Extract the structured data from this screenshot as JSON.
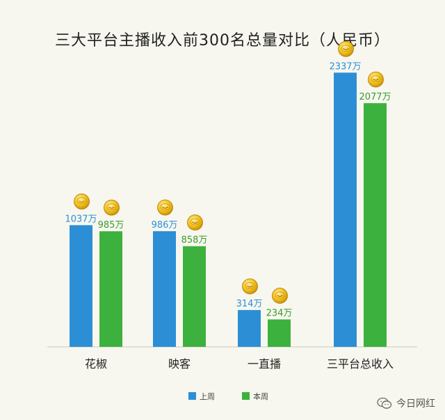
{
  "chart_data": {
    "type": "bar",
    "title": "三大平台主播收入前300名总量对比（人民币）",
    "categories": [
      "花椒",
      "映客",
      "一直播",
      "三平台总收入"
    ],
    "series": [
      {
        "name": "上周",
        "values": [
          1037,
          986,
          314,
          2337
        ],
        "labels": [
          "1037万",
          "986万",
          "314万",
          "2337万"
        ],
        "color": "#2c8fd6",
        "label_color": "#2c8fd6"
      },
      {
        "name": "本周",
        "values": [
          985,
          858,
          234,
          2077
        ],
        "labels": [
          "985万",
          "858万",
          "234万",
          "2077万"
        ],
        "color": "#3db13d",
        "label_color": "#3a9a2e"
      }
    ],
    "xlabel": "",
    "ylabel": "",
    "ylim": [
      0,
      2600
    ],
    "grid": false,
    "legend": "bottom",
    "icon": "gold-coin-icon"
  },
  "watermark": {
    "text": "今日网红",
    "icon": "wechat-icon"
  }
}
